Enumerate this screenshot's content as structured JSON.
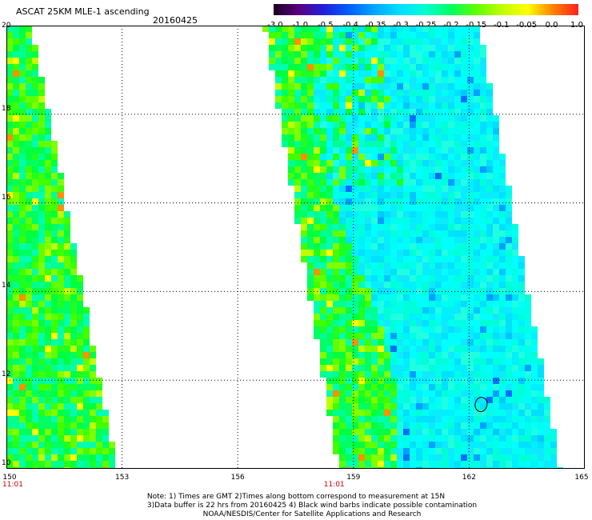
{
  "header": {
    "title": "ASCAT 25KM MLE-1 ascending",
    "date": "20160425"
  },
  "colorbar": {
    "ticks": [
      "-3.0",
      "-1.0",
      "-0.5",
      "-0.4",
      "-0.35",
      "-0.3",
      "-0.25",
      "-0.2",
      "-0.15",
      "-0.1",
      "-0.05",
      "0.0",
      "1.0"
    ],
    "colors": [
      "#1a0020",
      "#5a0080",
      "#2020e0",
      "#0060ff",
      "#00a8ff",
      "#00e0ff",
      "#00ffd0",
      "#00ff60",
      "#60ff00",
      "#c0ff00",
      "#ffff00",
      "#ff8000",
      "#ff2020"
    ]
  },
  "map": {
    "lon_ticks": [
      "150",
      "153",
      "156",
      "159",
      "162",
      "165"
    ],
    "lat_ticks": [
      "20",
      "18",
      "16",
      "14",
      "12",
      "10"
    ],
    "time_labels": [
      {
        "lon": 150,
        "text": "11:01"
      },
      {
        "lon": 158.5,
        "text": "11:01"
      }
    ],
    "lon_range": [
      150,
      165
    ],
    "lat_range": [
      10,
      20
    ],
    "swaths": [
      {
        "name": "west",
        "top_lon": [
          150,
          150.6
        ],
        "bottom_lon": [
          150,
          152.8
        ],
        "palette": "green"
      },
      {
        "name": "east",
        "top_lon": [
          156.8,
          162.2
        ],
        "bottom_lon": [
          158.7,
          164.3
        ],
        "palette": "cyan"
      }
    ]
  },
  "footer": {
    "line1": "Note: 1) Times are GMT 2)Times along bottom correspond to measurement at 15N",
    "line2": "3)Data buffer is 22 hrs from 20160425 4) Black wind barbs indicate possible contamination",
    "line3": "NOAA/NESDIS/Center for Satellite Applications and Research"
  }
}
